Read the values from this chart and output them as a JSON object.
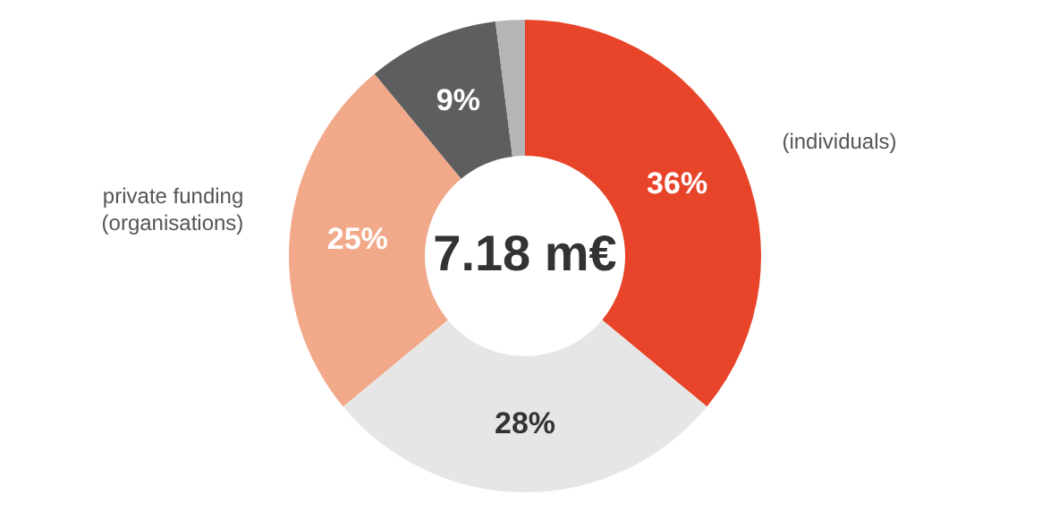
{
  "chart_data": {
    "type": "donut",
    "categories": [
      "(individuals)",
      null,
      "private funding (organisations)",
      null,
      null
    ],
    "values": [
      36,
      28,
      25,
      9,
      2
    ],
    "colors": [
      "#e8442a",
      "#e6e6e6",
      "#f2a98a",
      "#5f5e5e",
      "#b5b5b5"
    ],
    "value_labels": [
      "36%",
      "28%",
      "25%",
      "9%",
      null
    ],
    "annotations": [
      "7.18 m€"
    ]
  }
}
